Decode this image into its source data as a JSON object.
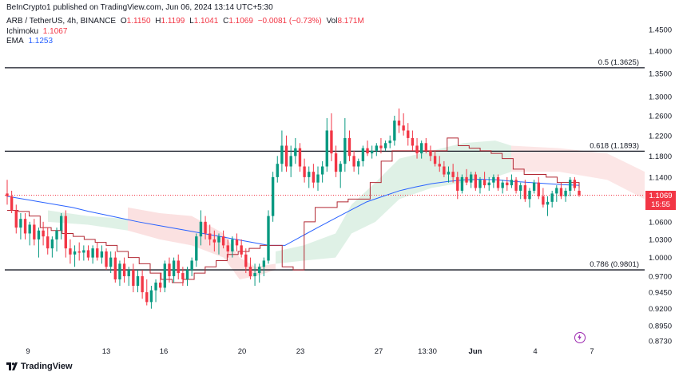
{
  "header": {
    "publisher": "BeInCrypto1 published on TradingView.com, Jun 06, 2024 13:14 UTC+5:30",
    "symbol": "ARB / TetherUS, 4h, BINANCE",
    "o_label": "O",
    "o_value": "1.1150",
    "h_label": "H",
    "h_value": "1.1199",
    "l_label": "L",
    "l_value": "1.1041",
    "c_label": "C",
    "c_value": "1.1069",
    "change": "−0.0081 (−0.73%)",
    "vol_label": "Vol",
    "vol_value": "8.171M"
  },
  "indicators": [
    {
      "name": "Ichimoku",
      "value": "1.1067",
      "color": "#f23645"
    },
    {
      "name": "EMA",
      "value": "1.1253",
      "color": "#2962ff"
    }
  ],
  "price_tag": {
    "price": "1.1069",
    "countdown": "15:55",
    "color": "#f23645"
  },
  "footer": {
    "brand": "TradingView"
  },
  "chart_data": {
    "type": "candlestick",
    "y_ticks": [
      1.45,
      1.4,
      1.35,
      1.3,
      1.26,
      1.22,
      1.18,
      1.14,
      1.1,
      1.06,
      1.03,
      1.0,
      0.97,
      0.945,
      0.92,
      0.895,
      0.873
    ],
    "y_tick_labels": [
      "1.4500",
      "1.4000",
      "1.3500",
      "1.3000",
      "1.2600",
      "1.2200",
      "1.1800",
      "1.1400",
      "1.1000",
      "1.0600",
      "1.0300",
      "1.0000",
      "0.9700",
      "0.9450",
      "0.9200",
      "0.8950",
      "0.8730"
    ],
    "x_ticks": [
      "9",
      "13",
      "16",
      "20",
      "23",
      "27",
      "13:30",
      "Jun",
      "4",
      "7"
    ],
    "fib_levels": [
      {
        "label": "0.5 (1.3625)",
        "value": 1.3625
      },
      {
        "label": "0.618 (1.1893)",
        "value": 1.1893
      },
      {
        "label": "0.786 (0.9801)",
        "value": 0.9801
      }
    ],
    "current_price": 1.1069,
    "colors": {
      "up": "#089981",
      "down": "#f23645",
      "ema": "#2962ff",
      "baseline": "#f23645",
      "cloud_bull": "#b7dfc7",
      "cloud_bear": "#f8c8c8"
    },
    "candles": [
      [
        1.11,
        1.135,
        1.09,
        1.105
      ],
      [
        1.105,
        1.115,
        1.075,
        1.08
      ],
      [
        1.08,
        1.09,
        1.04,
        1.05
      ],
      [
        1.05,
        1.075,
        1.03,
        1.065
      ],
      [
        1.065,
        1.075,
        1.03,
        1.04
      ],
      [
        1.04,
        1.06,
        1.02,
        1.055
      ],
      [
        1.055,
        1.065,
        1.02,
        1.03
      ],
      [
        1.03,
        1.05,
        1.0,
        1.045
      ],
      [
        1.045,
        1.06,
        1.02,
        1.035
      ],
      [
        1.035,
        1.05,
        1.005,
        1.015
      ],
      [
        1.015,
        1.035,
        1.0,
        1.03
      ],
      [
        1.03,
        1.05,
        1.01,
        1.045
      ],
      [
        1.045,
        1.075,
        1.03,
        1.07
      ],
      [
        1.07,
        1.08,
        1.0,
        1.015
      ],
      [
        1.015,
        1.03,
        0.99,
        1.005
      ],
      [
        1.005,
        1.02,
        0.985,
        1.01
      ],
      [
        1.01,
        1.025,
        0.995,
        1.008
      ],
      [
        1.008,
        1.02,
        0.995,
        1.012
      ],
      [
        1.012,
        1.02,
        0.995,
        1.0
      ],
      [
        1.0,
        1.02,
        0.99,
        1.015
      ],
      [
        1.015,
        1.025,
        0.995,
        1.0
      ],
      [
        1.0,
        1.02,
        0.99,
        1.01
      ],
      [
        1.01,
        1.015,
        0.98,
        0.985
      ],
      [
        0.985,
        1.01,
        0.975,
        1.0
      ],
      [
        1.0,
        1.01,
        0.96,
        0.965
      ],
      [
        0.965,
        0.995,
        0.955,
        0.99
      ],
      [
        0.99,
        1.0,
        0.96,
        0.97
      ],
      [
        0.97,
        0.985,
        0.955,
        0.98
      ],
      [
        0.98,
        0.99,
        0.945,
        0.955
      ],
      [
        0.955,
        0.98,
        0.945,
        0.97
      ],
      [
        0.97,
        0.98,
        0.935,
        0.945
      ],
      [
        0.945,
        0.965,
        0.925,
        0.93
      ],
      [
        0.93,
        0.955,
        0.92,
        0.948
      ],
      [
        0.948,
        0.965,
        0.93,
        0.96
      ],
      [
        0.96,
        0.975,
        0.945,
        0.952
      ],
      [
        0.952,
        0.995,
        0.945,
        0.99
      ],
      [
        0.99,
        1.0,
        0.96,
        0.97
      ],
      [
        0.97,
        1.0,
        0.96,
        0.995
      ],
      [
        0.995,
        1.005,
        0.965,
        0.975
      ],
      [
        0.975,
        0.985,
        0.955,
        0.965
      ],
      [
        0.965,
        0.985,
        0.955,
        0.98
      ],
      [
        0.98,
        1.0,
        0.97,
        0.995
      ],
      [
        0.995,
        1.04,
        0.985,
        1.035
      ],
      [
        1.035,
        1.08,
        1.02,
        1.06
      ],
      [
        1.06,
        1.07,
        1.03,
        1.04
      ],
      [
        1.04,
        1.055,
        1.02,
        1.03
      ],
      [
        1.03,
        1.045,
        1.01,
        1.025
      ],
      [
        1.025,
        1.04,
        1.005,
        1.035
      ],
      [
        1.035,
        1.045,
        1.015,
        1.02
      ],
      [
        1.02,
        1.03,
        1.0,
        1.01
      ],
      [
        1.01,
        1.035,
        1.0,
        1.03
      ],
      [
        1.03,
        1.04,
        1.01,
        1.02
      ],
      [
        1.02,
        1.03,
        1.0,
        1.005
      ],
      [
        1.005,
        1.015,
        0.975,
        0.985
      ],
      [
        0.985,
        1.0,
        0.965,
        0.97
      ],
      [
        0.97,
        0.99,
        0.955,
        0.975
      ],
      [
        0.975,
        0.99,
        0.96,
        0.985
      ],
      [
        0.985,
        1.0,
        0.97,
        0.995
      ],
      [
        0.995,
        1.08,
        0.99,
        1.07
      ],
      [
        1.07,
        1.15,
        1.06,
        1.14
      ],
      [
        1.14,
        1.18,
        1.13,
        1.165
      ],
      [
        1.165,
        1.23,
        1.15,
        1.2
      ],
      [
        1.2,
        1.22,
        1.15,
        1.16
      ],
      [
        1.16,
        1.2,
        1.14,
        1.18
      ],
      [
        1.18,
        1.215,
        1.165,
        1.195
      ],
      [
        1.195,
        1.205,
        1.15,
        1.16
      ],
      [
        1.16,
        1.175,
        1.13,
        1.14
      ],
      [
        1.14,
        1.16,
        1.12,
        1.15
      ],
      [
        1.15,
        1.165,
        1.12,
        1.13
      ],
      [
        1.13,
        1.16,
        1.115,
        1.145
      ],
      [
        1.145,
        1.17,
        1.13,
        1.16
      ],
      [
        1.16,
        1.255,
        1.15,
        1.23
      ],
      [
        1.23,
        1.265,
        1.17,
        1.185
      ],
      [
        1.185,
        1.2,
        1.14,
        1.15
      ],
      [
        1.15,
        1.17,
        1.12,
        1.165
      ],
      [
        1.165,
        1.255,
        1.15,
        1.215
      ],
      [
        1.215,
        1.23,
        1.17,
        1.18
      ],
      [
        1.18,
        1.19,
        1.15,
        1.16
      ],
      [
        1.16,
        1.175,
        1.145,
        1.17
      ],
      [
        1.17,
        1.2,
        1.16,
        1.195
      ],
      [
        1.195,
        1.21,
        1.18,
        1.185
      ],
      [
        1.185,
        1.2,
        1.175,
        1.19
      ],
      [
        1.19,
        1.205,
        1.18,
        1.2
      ],
      [
        1.2,
        1.215,
        1.185,
        1.195
      ],
      [
        1.195,
        1.21,
        1.19,
        1.205
      ],
      [
        1.205,
        1.22,
        1.195,
        1.21
      ],
      [
        1.21,
        1.26,
        1.2,
        1.25
      ],
      [
        1.25,
        1.275,
        1.225,
        1.24
      ],
      [
        1.24,
        1.265,
        1.22,
        1.23
      ],
      [
        1.23,
        1.245,
        1.2,
        1.215
      ],
      [
        1.215,
        1.23,
        1.19,
        1.2
      ],
      [
        1.2,
        1.215,
        1.175,
        1.185
      ],
      [
        1.185,
        1.21,
        1.175,
        1.205
      ],
      [
        1.205,
        1.215,
        1.185,
        1.19
      ],
      [
        1.19,
        1.2,
        1.17,
        1.18
      ],
      [
        1.18,
        1.19,
        1.16,
        1.165
      ],
      [
        1.165,
        1.18,
        1.15,
        1.16
      ],
      [
        1.16,
        1.17,
        1.14,
        1.145
      ],
      [
        1.145,
        1.16,
        1.13,
        1.15
      ],
      [
        1.15,
        1.165,
        1.13,
        1.14
      ],
      [
        1.14,
        1.15,
        1.1,
        1.115
      ],
      [
        1.115,
        1.145,
        1.11,
        1.14
      ],
      [
        1.14,
        1.155,
        1.125,
        1.13
      ],
      [
        1.13,
        1.15,
        1.12,
        1.145
      ],
      [
        1.145,
        1.15,
        1.115,
        1.12
      ],
      [
        1.12,
        1.14,
        1.11,
        1.135
      ],
      [
        1.135,
        1.15,
        1.12,
        1.125
      ],
      [
        1.125,
        1.14,
        1.115,
        1.13
      ],
      [
        1.13,
        1.145,
        1.12,
        1.14
      ],
      [
        1.14,
        1.145,
        1.115,
        1.12
      ],
      [
        1.12,
        1.135,
        1.11,
        1.13
      ],
      [
        1.13,
        1.14,
        1.115,
        1.125
      ],
      [
        1.125,
        1.145,
        1.12,
        1.135
      ],
      [
        1.135,
        1.14,
        1.11,
        1.115
      ],
      [
        1.115,
        1.13,
        1.1,
        1.125
      ],
      [
        1.125,
        1.135,
        1.095,
        1.1
      ],
      [
        1.1,
        1.12,
        1.085,
        1.115
      ],
      [
        1.115,
        1.135,
        1.11,
        1.13
      ],
      [
        1.13,
        1.14,
        1.1,
        1.105
      ],
      [
        1.105,
        1.12,
        1.085,
        1.09
      ],
      [
        1.09,
        1.105,
        1.07,
        1.095
      ],
      [
        1.095,
        1.115,
        1.085,
        1.11
      ],
      [
        1.11,
        1.125,
        1.095,
        1.12
      ],
      [
        1.12,
        1.13,
        1.1,
        1.105
      ],
      [
        1.105,
        1.12,
        1.095,
        1.115
      ],
      [
        1.115,
        1.14,
        1.105,
        1.135
      ],
      [
        1.135,
        1.14,
        1.115,
        1.12
      ],
      [
        1.115,
        1.12,
        1.104,
        1.107
      ]
    ],
    "ema": [
      1.105,
      1.1,
      1.095,
      1.09,
      1.085,
      1.078,
      1.072,
      1.066,
      1.06,
      1.055,
      1.05,
      1.045,
      1.04,
      1.035,
      1.03,
      1.025,
      1.02,
      1.02,
      1.035,
      1.05,
      1.065,
      1.08,
      1.095,
      1.105,
      1.115,
      1.122,
      1.128,
      1.132,
      1.135,
      1.136,
      1.135,
      1.132,
      1.13,
      1.128,
      1.126,
      1.125
    ],
    "baseline": [
      1.08,
      1.078,
      1.07,
      1.05,
      1.045,
      1.04,
      1.035,
      1.03,
      1.025,
      1.02,
      1.01,
      1.0,
      0.99,
      0.975,
      0.965,
      0.96,
      0.965,
      0.975,
      0.985,
      0.995,
      1.005,
      1.01,
      1.015,
      1.02,
      1.02,
      0.985,
      0.98,
      1.06,
      1.085,
      1.085,
      1.095,
      1.1,
      1.1,
      1.13,
      1.17,
      1.19,
      1.19,
      1.19,
      1.19,
      1.19,
      1.215,
      1.2,
      1.195,
      1.19,
      1.185,
      1.175,
      1.155,
      1.145,
      1.145,
      1.14,
      1.13,
      1.13,
      1.12
    ]
  }
}
